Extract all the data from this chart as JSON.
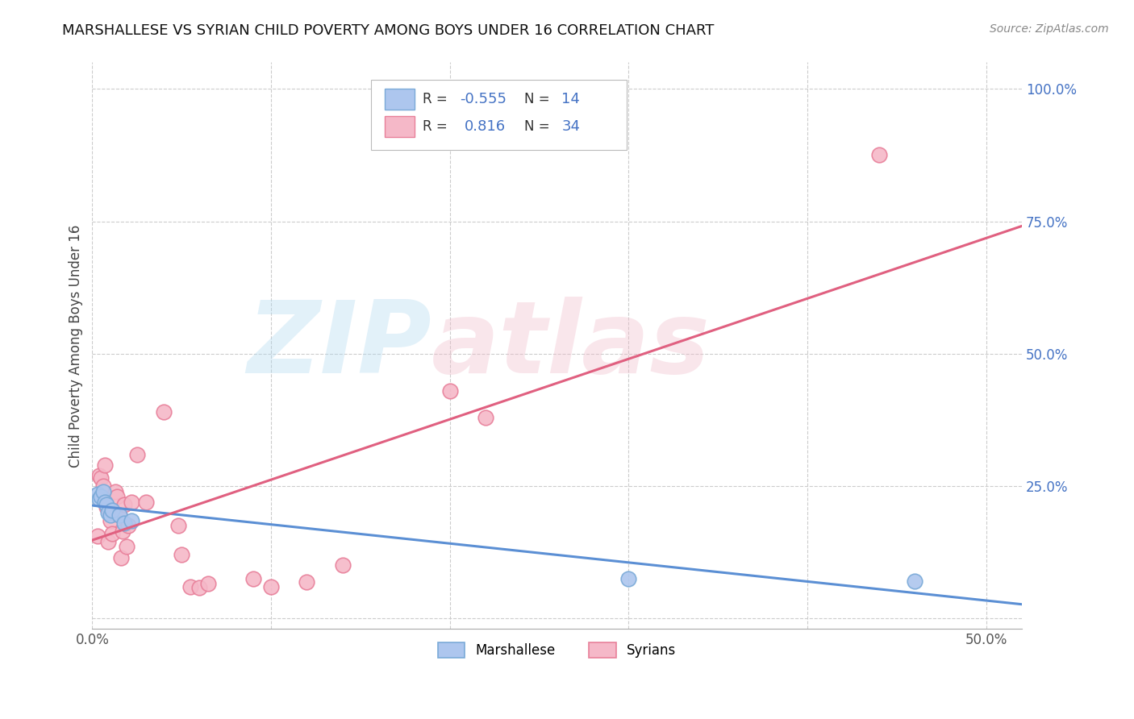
{
  "title": "MARSHALLESE VS SYRIAN CHILD POVERTY AMONG BOYS UNDER 16 CORRELATION CHART",
  "source": "Source: ZipAtlas.com",
  "ylabel": "Child Poverty Among Boys Under 16",
  "xlim": [
    0.0,
    0.52
  ],
  "ylim": [
    -0.02,
    1.05
  ],
  "xticks": [
    0.0,
    0.05,
    0.1,
    0.15,
    0.2,
    0.25,
    0.3,
    0.35,
    0.4,
    0.45,
    0.5
  ],
  "xticklabels": [
    "0.0%",
    "",
    "",
    "",
    "",
    "",
    "",
    "",
    "",
    "",
    "50.0%"
  ],
  "yticks_right": [
    0.0,
    0.25,
    0.5,
    0.75,
    1.0
  ],
  "ytick_labels_right": [
    "",
    "25.0%",
    "50.0%",
    "75.0%",
    "100.0%"
  ],
  "grid_color": "#cccccc",
  "background_color": "#ffffff",
  "marshallese_color": "#adc6ee",
  "marshallese_edge": "#7aaad8",
  "syrian_color": "#f5b8c8",
  "syrian_edge": "#e8809a",
  "marshallese_line_color": "#5b8fd4",
  "syrian_line_color": "#e06080",
  "marshallese_x": [
    0.003,
    0.004,
    0.005,
    0.006,
    0.007,
    0.008,
    0.009,
    0.01,
    0.011,
    0.015,
    0.018,
    0.022,
    0.3,
    0.46
  ],
  "marshallese_y": [
    0.235,
    0.225,
    0.23,
    0.24,
    0.22,
    0.215,
    0.2,
    0.195,
    0.205,
    0.195,
    0.18,
    0.185,
    0.075,
    0.07
  ],
  "syrian_x": [
    0.003,
    0.004,
    0.005,
    0.006,
    0.007,
    0.008,
    0.009,
    0.01,
    0.011,
    0.012,
    0.013,
    0.014,
    0.015,
    0.016,
    0.017,
    0.018,
    0.019,
    0.02,
    0.022,
    0.025,
    0.03,
    0.04,
    0.048,
    0.05,
    0.055,
    0.06,
    0.065,
    0.09,
    0.1,
    0.12,
    0.14,
    0.2,
    0.22,
    0.44
  ],
  "syrian_y": [
    0.155,
    0.27,
    0.265,
    0.25,
    0.29,
    0.21,
    0.145,
    0.185,
    0.16,
    0.2,
    0.24,
    0.23,
    0.195,
    0.115,
    0.165,
    0.215,
    0.135,
    0.175,
    0.22,
    0.31,
    0.22,
    0.39,
    0.175,
    0.12,
    0.06,
    0.058,
    0.065,
    0.075,
    0.06,
    0.068,
    0.1,
    0.43,
    0.38,
    0.875
  ],
  "watermark_zip": "ZIP",
  "watermark_atlas": "atlas",
  "legend_color": "#4472c4"
}
